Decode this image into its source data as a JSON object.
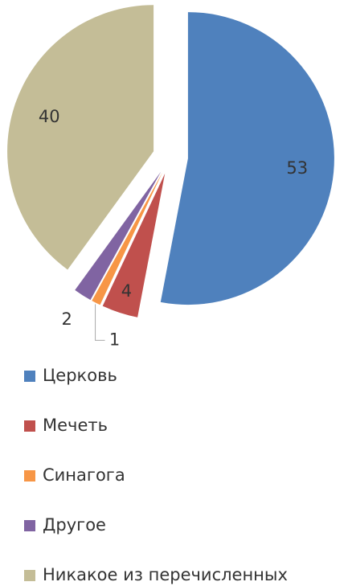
{
  "chart_data": {
    "type": "pie",
    "categories": [
      "Церковь",
      "Мечеть",
      "Синагога",
      "Другое",
      "Никакое из перечисленных"
    ],
    "values": [
      53,
      4,
      1,
      2,
      40
    ],
    "colors": [
      "#4f81bd",
      "#c0504d",
      "#f79646",
      "#8064a2",
      "#c4bd97"
    ],
    "exploded": true,
    "legend": "bottom"
  }
}
